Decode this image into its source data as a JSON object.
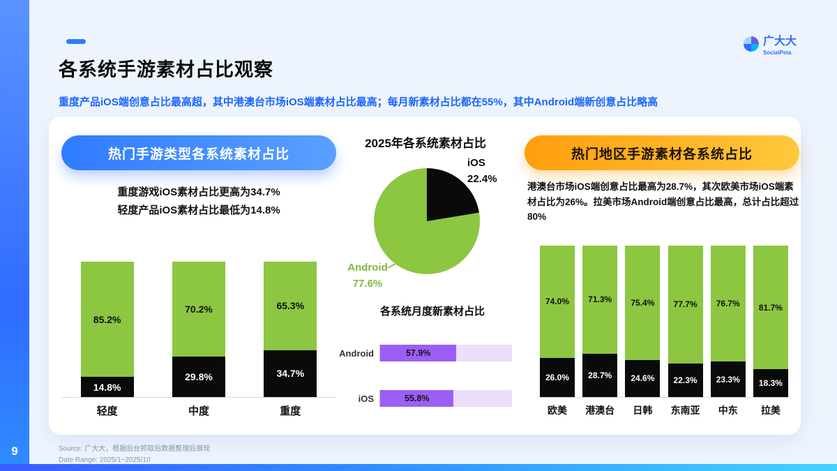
{
  "page": {
    "title": "各系统手游素材占比观察",
    "subtitle": "重度产品iOS端创意占比最高超，其中港澳台市场iOS端素材占比最高；每月新素材占比都在55%，其中Android端新创意占比略高",
    "page_number": "9",
    "source_line1": "Source: 广大大，根据后台抓取后数据整理后展现",
    "source_line2": "Date Range: 2025/1~2025/10"
  },
  "brand": {
    "name": "广大大",
    "subname": "SocialPeta"
  },
  "left_panel": {
    "badge": "热门手游类型各系统素材占比",
    "note_line1": "重度游戏iOS素材占比更高为34.7%",
    "note_line2": "轻度产品iOS素材占比最低为14.8%"
  },
  "mid_panel": {
    "pie_title": "2025年各系统素材占比",
    "hbar_title": "各系统月度新素材占比"
  },
  "right_panel": {
    "badge": "热门地区手游素材各系统占比",
    "note": "港澳台市场iOS端创意占比最高为28.7%，其次欧美市场iOS端素材占比为26%。拉美市场Android端创意占比最高，总计占比超过80%"
  },
  "colors": {
    "android_green": "#8dc641",
    "ios_black": "#0a0a0a",
    "bar_purple": "#9c5ff6",
    "bar_track": "#ebdffa",
    "accent_blue": "#1b66ff",
    "badge_orange": "#ffb020"
  },
  "chart_data": [
    {
      "id": "game_types",
      "type": "bar",
      "stacked": true,
      "title": "热门手游类型各系统素材占比",
      "categories": [
        "轻度",
        "中度",
        "重度"
      ],
      "series": [
        {
          "name": "Android",
          "color_key": "android_green",
          "values": [
            85.2,
            70.2,
            65.3
          ]
        },
        {
          "name": "iOS",
          "color_key": "ios_black",
          "values": [
            14.8,
            29.8,
            34.7
          ]
        }
      ],
      "ylim": [
        0,
        100
      ],
      "unit": "%"
    },
    {
      "id": "system_share_pie",
      "type": "pie",
      "title": "2025年各系统素材占比",
      "slices": [
        {
          "name": "iOS",
          "value": 22.4,
          "color_key": "ios_black"
        },
        {
          "name": "Android",
          "value": 77.6,
          "color_key": "android_green"
        }
      ]
    },
    {
      "id": "monthly_new_material",
      "type": "bar",
      "orientation": "horizontal",
      "title": "各系统月度新素材占比",
      "categories": [
        "Android",
        "iOS"
      ],
      "values": [
        57.9,
        55.8
      ],
      "xlim": [
        0,
        100
      ],
      "unit": "%"
    },
    {
      "id": "regions",
      "type": "bar",
      "stacked": true,
      "title": "热门地区手游素材各系统占比",
      "categories": [
        "欧美",
        "港澳台",
        "日韩",
        "东南亚",
        "中东",
        "拉美"
      ],
      "series": [
        {
          "name": "Android",
          "color_key": "android_green",
          "values": [
            74.0,
            71.3,
            75.4,
            77.7,
            76.7,
            81.7
          ]
        },
        {
          "name": "iOS",
          "color_key": "ios_black",
          "values": [
            26.0,
            28.7,
            24.6,
            22.3,
            23.3,
            18.3
          ]
        }
      ],
      "ylim": [
        0,
        100
      ],
      "unit": "%"
    }
  ]
}
